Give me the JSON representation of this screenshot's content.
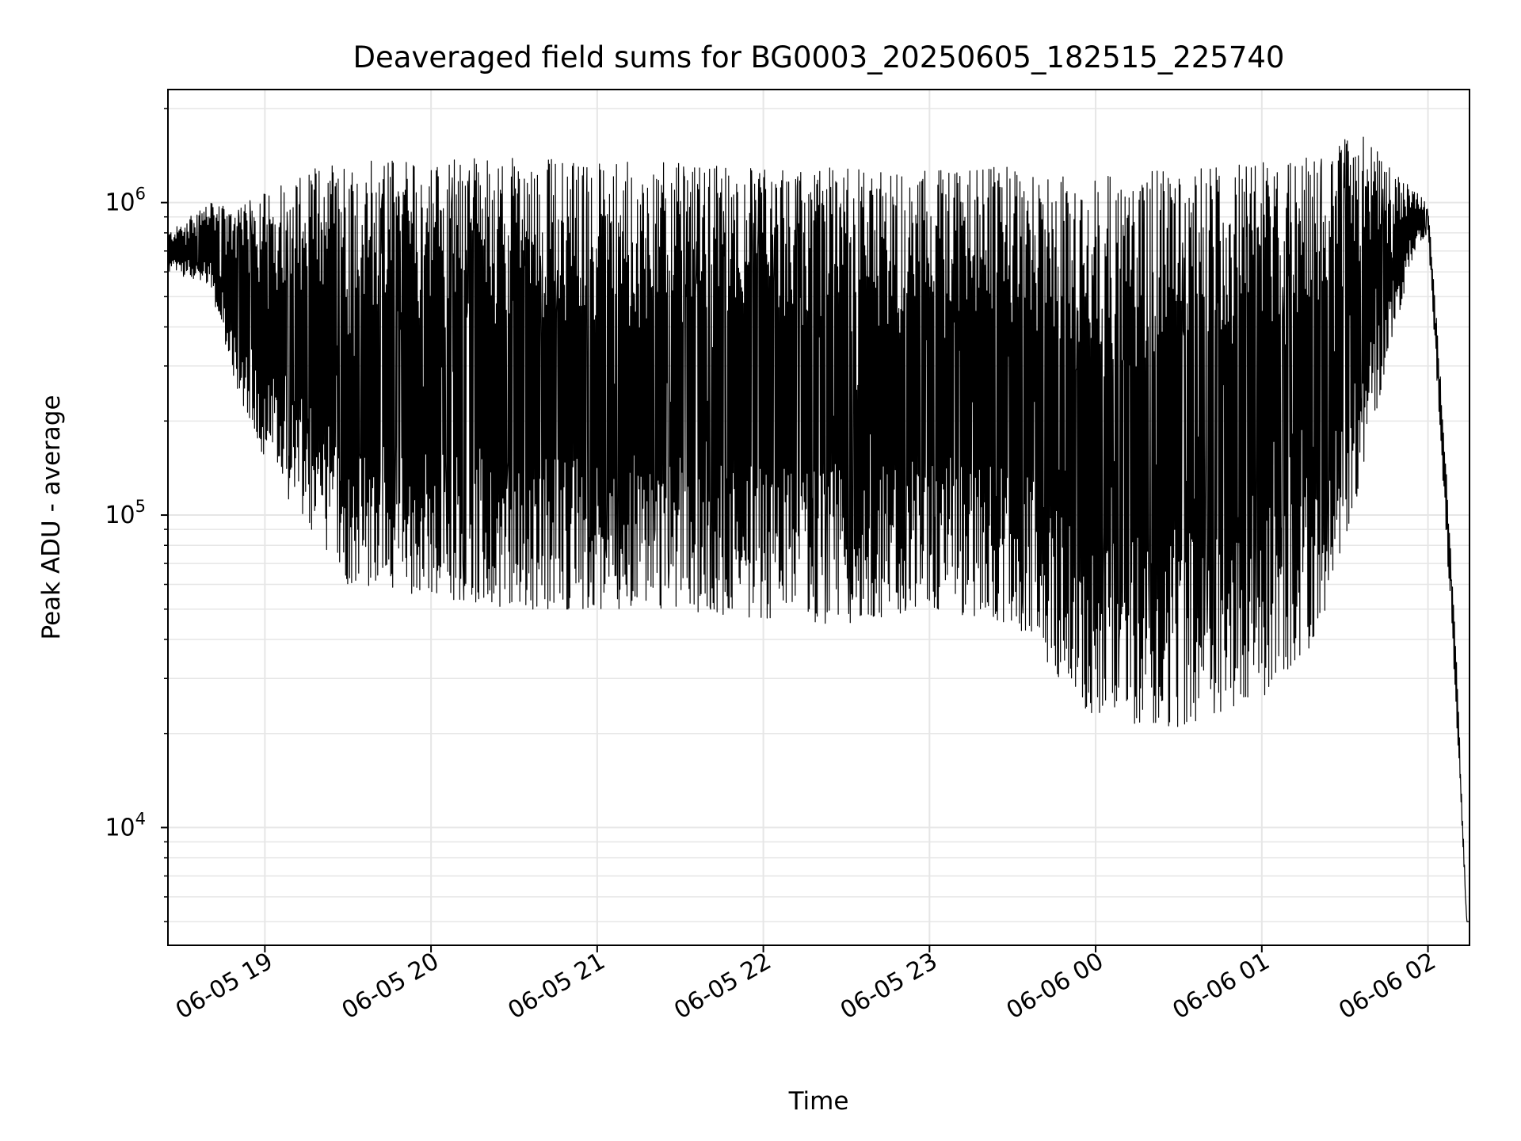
{
  "chart_data": {
    "type": "line",
    "title": "Deaveraged field sums for BG0003_20250605_182515_225740",
    "xlabel": "Time",
    "ylabel": "Peak ADU - average",
    "y_scale": "log",
    "ylim": [
      4200,
      2300000
    ],
    "xlim": [
      "06-05 18:25",
      "06-06 02:15"
    ],
    "x_ticks": [
      "06-05 19",
      "06-05 20",
      "06-05 21",
      "06-05 22",
      "06-05 23",
      "06-06 00",
      "06-06 01",
      "06-06 02"
    ],
    "y_ticks": [
      {
        "value": 10000,
        "base": "10",
        "exp": "4"
      },
      {
        "value": 100000,
        "base": "10",
        "exp": "5"
      },
      {
        "value": 1000000,
        "base": "10",
        "exp": "6"
      }
    ],
    "grid": true,
    "line_color": "#000000",
    "grid_color": "#e6e6e6",
    "series": [
      {
        "x": [
          "06-05 18:25",
          "06-05 18:40",
          "06-05 18:50",
          "06-05 19:00",
          "06-05 19:15",
          "06-05 19:30",
          "06-05 20:00",
          "06-05 20:30",
          "06-05 21:00",
          "06-05 21:30",
          "06-05 22:00",
          "06-05 22:30",
          "06-05 23:00",
          "06-05 23:30",
          "06-06 00:00",
          "06-06 00:30",
          "06-06 01:00",
          "06-06 01:20",
          "06-06 01:35",
          "06-06 01:45",
          "06-06 01:55",
          "06-06 02:00",
          "06-06 02:05",
          "06-06 02:10",
          "06-06 02:14"
        ],
        "envelope_max": [
          800000,
          1000000,
          950000,
          1100000,
          1300000,
          1400000,
          1400000,
          1400000,
          1350000,
          1350000,
          1300000,
          1300000,
          1300000,
          1300000,
          1200000,
          1350000,
          1350000,
          1400000,
          1700000,
          1350000,
          1100000,
          1000000,
          250000,
          40000,
          5000
        ],
        "envelope_min": [
          600000,
          550000,
          250000,
          150000,
          90000,
          60000,
          55000,
          50000,
          50000,
          50000,
          45000,
          45000,
          50000,
          45000,
          22000,
          21000,
          26000,
          40000,
          120000,
          300000,
          700000,
          800000,
          150000,
          25000,
          5000
        ]
      }
    ]
  }
}
